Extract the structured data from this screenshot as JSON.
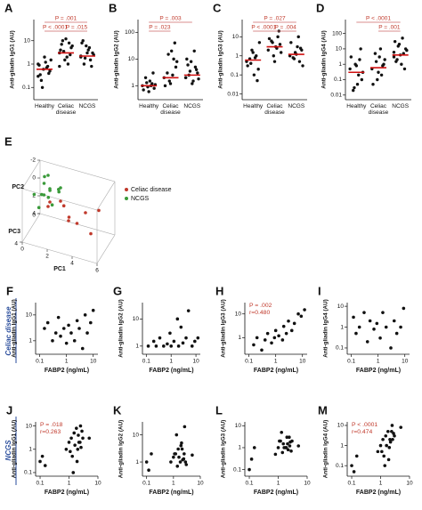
{
  "row_labels": [
    "Celiac disease",
    "NCGS"
  ],
  "chart_data": [
    {
      "type": "strip",
      "panel": "A",
      "y_label": "Anti-gliadin IgG1 (AU)",
      "log_y": true,
      "ylim": [
        0.03,
        80
      ],
      "yticks": [
        0.1,
        1,
        10
      ],
      "point_color": "#111",
      "median_color": "#d01010",
      "series": [
        {
          "name": "Healthy",
          "values": [
            0.3,
            0.5,
            0.8,
            1.2,
            0.6,
            0.2,
            0.9,
            1.5,
            0.4,
            0.7,
            2,
            0.1,
            0.35,
            1.0
          ],
          "median": 0.6
        },
        {
          "name": "Celiac disease",
          "values": [
            3,
            5,
            8,
            2,
            1.5,
            10,
            4,
            6,
            2.5,
            1,
            12,
            3.5,
            7,
            0.8
          ],
          "median": 3
        },
        {
          "name": "NCGS",
          "values": [
            2,
            3,
            1.5,
            4,
            6,
            1,
            8,
            2.5,
            0.8,
            5,
            3,
            1.8,
            10,
            2.2
          ],
          "median": 2.2
        }
      ],
      "comparisons": [
        {
          "label": "P = .001",
          "between": [
            "Healthy",
            "NCGS"
          ]
        },
        {
          "label": "P < .0001",
          "between": [
            "Healthy",
            "Celiac disease"
          ]
        },
        {
          "label": "P = .015",
          "between": [
            "Celiac disease",
            "NCGS"
          ]
        }
      ]
    },
    {
      "type": "strip",
      "panel": "B",
      "y_label": "Anti-gliadin IgG2 (AU)",
      "log_y": true,
      "ylim": [
        0.3,
        300
      ],
      "yticks": [
        1,
        10,
        100
      ],
      "point_color": "#111",
      "median_color": "#d01010",
      "series": [
        {
          "name": "Healthy",
          "values": [
            1,
            0.8,
            1.2,
            1.5,
            0.9,
            2,
            0.7,
            1.1,
            3,
            1,
            0.6,
            1.3
          ],
          "median": 1
        },
        {
          "name": "Celiac disease",
          "values": [
            2,
            5,
            10,
            20,
            1.5,
            3,
            1,
            8,
            40,
            2.5,
            1.2,
            15
          ],
          "median": 2
        },
        {
          "name": "NCGS",
          "values": [
            2,
            3,
            5,
            1.5,
            8,
            2.5,
            10,
            1.8,
            4,
            20,
            1.2,
            3.5,
            6,
            2
          ],
          "median": 2.5
        }
      ],
      "comparisons": [
        {
          "label": "P = .003",
          "between": [
            "Healthy",
            "NCGS"
          ]
        },
        {
          "label": "P = .023",
          "between": [
            "Healthy",
            "Celiac disease"
          ]
        }
      ]
    },
    {
      "type": "strip",
      "panel": "C",
      "y_label": "Anti-gliadin IgG3 (AU)",
      "log_y": true,
      "ylim": [
        0.005,
        80
      ],
      "yticks": [
        0.01,
        0.1,
        1,
        10
      ],
      "point_color": "#111",
      "median_color": "#d01010",
      "series": [
        {
          "name": "Healthy",
          "values": [
            0.5,
            0.2,
            1,
            0.1,
            2,
            0.7,
            0.3,
            5,
            0.05,
            0.8,
            1.5,
            0.4
          ],
          "median": 0.6
        },
        {
          "name": "Celiac disease",
          "values": [
            2,
            4,
            10,
            3,
            1,
            6,
            8,
            1.5,
            20,
            2.5,
            0.5,
            5
          ],
          "median": 3
        },
        {
          "name": "NCGS",
          "values": [
            1,
            2,
            0.5,
            3,
            1.5,
            0.8,
            5,
            0.3,
            2.5,
            10,
            1.2,
            0.7
          ],
          "median": 1.2
        }
      ],
      "comparisons": [
        {
          "label": "P = .027",
          "between": [
            "Healthy",
            "NCGS"
          ]
        },
        {
          "label": "P < .0001",
          "between": [
            "Healthy",
            "Celiac disease"
          ]
        },
        {
          "label": "P = .004",
          "between": [
            "Celiac disease",
            "NCGS"
          ]
        }
      ]
    },
    {
      "type": "strip",
      "panel": "D",
      "y_label": "Anti-gliadin IgG4 (AU)",
      "log_y": true,
      "ylim": [
        0.005,
        800
      ],
      "yticks": [
        0.01,
        0.1,
        1,
        10,
        100
      ],
      "point_color": "#111",
      "median_color": "#d01010",
      "series": [
        {
          "name": "Healthy",
          "values": [
            0.5,
            0.1,
            2,
            0.05,
            1,
            0.02,
            3,
            0.3,
            10,
            0.2,
            0.8,
            0.03
          ],
          "median": 0.3
        },
        {
          "name": "Celiac disease",
          "values": [
            0.5,
            1,
            0.2,
            3,
            0.1,
            5,
            0.05,
            2,
            0.8,
            10,
            0.3,
            1.5
          ],
          "median": 0.6
        },
        {
          "name": "NCGS",
          "values": [
            3,
            10,
            5,
            1,
            20,
            2,
            30,
            8,
            0.5,
            50,
            4,
            15,
            1.5,
            6
          ],
          "median": 4
        }
      ],
      "comparisons": [
        {
          "label": "P < .0001",
          "between": [
            "Healthy",
            "NCGS"
          ]
        },
        {
          "label": "P = .001",
          "between": [
            "Celiac disease",
            "NCGS"
          ]
        }
      ]
    },
    {
      "type": "scatter3d",
      "panel": "E",
      "x_label": "PC1",
      "y_label": "PC2",
      "z_label": "PC3",
      "xlim": [
        0,
        6
      ],
      "ylim": [
        -2,
        4
      ],
      "zlim": [
        0,
        4
      ],
      "xticks": [
        0,
        2,
        4,
        6
      ],
      "yticks": [
        -2,
        0,
        2,
        4
      ],
      "zticks": [
        0,
        4
      ],
      "series": [
        {
          "name": "Celiac disease",
          "color": "#c0392b",
          "x": [
            2,
            3,
            4,
            2.5,
            1.5,
            3.5,
            5,
            2.8,
            1,
            4.5
          ],
          "y": [
            1,
            2,
            1.5,
            3,
            0.5,
            2.5,
            1,
            0,
            2,
            3.5
          ],
          "z": [
            1,
            2,
            1,
            0.5,
            2,
            1.5,
            0.8,
            2.5,
            1,
            1.2
          ]
        },
        {
          "name": "NCGS",
          "color": "#3a9a3a",
          "x": [
            1,
            1.5,
            0.5,
            1.2,
            2,
            0.8,
            1,
            1.8,
            0.6,
            1.4,
            2.2,
            0.9,
            1.1,
            0.7
          ],
          "y": [
            -1.5,
            -1,
            0,
            0.5,
            -0.5,
            1,
            -2,
            0.2,
            -0.8,
            1.5,
            -1.2,
            0.8,
            -0.3,
            0.3
          ],
          "z": [
            1,
            2,
            0.5,
            1.5,
            1,
            2.5,
            1.8,
            0.8,
            3,
            1.2,
            2,
            0.3,
            2.2,
            1.6
          ]
        }
      ]
    },
    {
      "type": "scatter",
      "panel": "F",
      "x_label": "FABP2 (ng/mL)",
      "y_label": "Anti-gliadin IgG1 (AU)",
      "log_x": true,
      "log_y": true,
      "xlim": [
        0.07,
        15
      ],
      "ylim": [
        0.3,
        30
      ],
      "xticks": [
        0.1,
        1,
        10
      ],
      "yticks": [
        1,
        10
      ],
      "color": "#111",
      "x": [
        0.15,
        0.2,
        0.3,
        0.4,
        0.5,
        0.6,
        0.8,
        1,
        1.2,
        1.5,
        2,
        2.5,
        3,
        4,
        5,
        6,
        8,
        10
      ],
      "y": [
        3,
        5,
        1,
        2,
        8,
        1.5,
        3,
        0.8,
        4,
        2,
        1,
        6,
        3,
        0.5,
        10,
        2,
        5,
        15
      ]
    },
    {
      "type": "scatter",
      "panel": "G",
      "x_label": "FABP2 (ng/mL)",
      "y_label": "Anti-gliadin IgG2 (AU)",
      "log_x": true,
      "log_y": true,
      "xlim": [
        0.07,
        15
      ],
      "ylim": [
        0.5,
        40
      ],
      "xticks": [
        0.1,
        1,
        10
      ],
      "yticks": [
        1,
        10
      ],
      "color": "#111",
      "x": [
        0.12,
        0.2,
        0.25,
        0.35,
        0.5,
        0.7,
        0.9,
        1,
        1.3,
        1.8,
        2,
        2.5,
        3,
        4,
        5,
        7,
        9,
        12
      ],
      "y": [
        1,
        1.5,
        1,
        2,
        1,
        1.2,
        3,
        1,
        1.5,
        10,
        1,
        5,
        1.3,
        2,
        20,
        1,
        1.5,
        2
      ]
    },
    {
      "type": "scatter",
      "panel": "H",
      "x_label": "FABP2 (ng/mL)",
      "y_label": "Anti-gliadin IgG3 (AU)",
      "log_x": true,
      "log_y": true,
      "xlim": [
        0.07,
        15
      ],
      "ylim": [
        0.2,
        30
      ],
      "xticks": [
        0.1,
        1,
        10
      ],
      "yticks": [
        1,
        10
      ],
      "color": "#111",
      "annotations": [
        "P = .002",
        "r=0.480"
      ],
      "x": [
        0.15,
        0.2,
        0.3,
        0.4,
        0.5,
        0.7,
        0.9,
        1,
        1.3,
        1.8,
        2,
        2.5,
        3,
        4,
        5,
        7,
        9,
        12
      ],
      "y": [
        0.5,
        1,
        0.3,
        0.8,
        1.5,
        0.6,
        1,
        2,
        1.2,
        0.8,
        3,
        1.5,
        5,
        2,
        4,
        10,
        8,
        15
      ]
    },
    {
      "type": "scatter",
      "panel": "I",
      "x_label": "FABP2 (ng/mL)",
      "y_label": "Anti-gliadin IgG4 (AU)",
      "log_x": true,
      "log_y": true,
      "xlim": [
        0.07,
        15
      ],
      "ylim": [
        0.05,
        15
      ],
      "xticks": [
        0.1,
        1,
        10
      ],
      "yticks": [
        0.1,
        1,
        10
      ],
      "color": "#111",
      "x": [
        0.12,
        0.15,
        0.2,
        0.3,
        0.4,
        0.5,
        0.7,
        0.9,
        1.2,
        1.5,
        2,
        3,
        4,
        5,
        7,
        9
      ],
      "y": [
        3,
        0.5,
        1,
        5,
        0.2,
        2,
        0.8,
        1.5,
        0.3,
        5,
        1,
        0.1,
        2,
        0.5,
        1,
        8
      ]
    },
    {
      "type": "scatter",
      "panel": "J",
      "x_label": "FABP2 (ng/mL)",
      "y_label": "Anti-gliadin IgG1 (AU)",
      "log_x": true,
      "log_y": true,
      "xlim": [
        0.07,
        10
      ],
      "ylim": [
        0.07,
        15
      ],
      "xticks": [
        0.1,
        1,
        10
      ],
      "yticks": [
        0.1,
        1,
        10
      ],
      "color": "#111",
      "annotations": [
        "P = .018",
        "r=0.263"
      ],
      "x": [
        0.1,
        0.12,
        0.15,
        0.8,
        1,
        1.2,
        1.5,
        1.8,
        2,
        2.2,
        2.5,
        3,
        1.3,
        1.6,
        2.1,
        2.8,
        1.1,
        1.9,
        2.4,
        5,
        1.4,
        2.6
      ],
      "y": [
        0.3,
        0.5,
        0.2,
        1,
        2,
        3,
        5,
        8,
        1,
        2,
        10,
        3,
        0.5,
        1.5,
        4,
        6,
        0.8,
        0.3,
        2,
        3,
        0.1,
        1.2
      ]
    },
    {
      "type": "scatter",
      "panel": "K",
      "x_label": "FABP2 (ng/mL)",
      "y_label": "Anti-gliadin IgG2 (AU)",
      "log_x": true,
      "log_y": true,
      "xlim": [
        0.07,
        10
      ],
      "ylim": [
        0.3,
        30
      ],
      "xticks": [
        0.1,
        1,
        10
      ],
      "yticks": [
        1,
        10
      ],
      "color": "#111",
      "x": [
        0.1,
        0.12,
        0.15,
        0.8,
        1,
        1.2,
        1.5,
        1.8,
        2,
        2.2,
        2.5,
        3,
        1.3,
        1.6,
        2.1,
        2.8,
        1.1,
        1.9,
        2.4,
        5,
        1.4,
        2.6
      ],
      "y": [
        1,
        0.5,
        2,
        1,
        1.5,
        2,
        3,
        1,
        5,
        1.2,
        2,
        0.8,
        10,
        1.5,
        3,
        1,
        2,
        4,
        1.3,
        1.8,
        0.7,
        20
      ]
    },
    {
      "type": "scatter",
      "panel": "L",
      "x_label": "FABP2 (ng/mL)",
      "y_label": "Anti-gliadin IgG3 (AU)",
      "log_x": true,
      "log_y": true,
      "xlim": [
        0.07,
        10
      ],
      "ylim": [
        0.05,
        15
      ],
      "xticks": [
        0.1,
        1,
        10
      ],
      "yticks": [
        0.1,
        1,
        10
      ],
      "color": "#111",
      "x": [
        0.1,
        0.12,
        0.15,
        0.8,
        1,
        1.2,
        1.5,
        1.8,
        2,
        2.2,
        2.5,
        3,
        1.3,
        1.6,
        2.1,
        2.8,
        1.1,
        1.9,
        2.4,
        5,
        1.4,
        2.6
      ],
      "y": [
        0.1,
        0.3,
        1,
        0.5,
        1,
        2,
        1.5,
        1,
        3,
        0.8,
        1.2,
        2,
        5,
        1,
        1.5,
        0.7,
        2,
        1,
        3,
        1.2,
        0.6,
        1.8
      ]
    },
    {
      "type": "scatter",
      "panel": "M",
      "x_label": "FABP2 (ng/mL)",
      "y_label": "Anti-gliadin IgG4 (AU)",
      "log_x": true,
      "log_y": true,
      "xlim": [
        0.07,
        10
      ],
      "ylim": [
        0.03,
        15
      ],
      "xticks": [
        0.1,
        1,
        10
      ],
      "yticks": [
        0.1,
        1,
        10
      ],
      "color": "#111",
      "annotations": [
        "P < .0001",
        "r=0.474"
      ],
      "x": [
        0.1,
        0.12,
        0.15,
        0.8,
        1,
        1.2,
        1.5,
        1.8,
        2,
        2.2,
        2.5,
        3,
        1.3,
        1.6,
        2.1,
        2.8,
        1.1,
        1.9,
        2.4,
        5,
        1.4,
        2.6
      ],
      "y": [
        0.1,
        0.05,
        0.3,
        0.5,
        1,
        2,
        3,
        5,
        0.8,
        1.5,
        10,
        3,
        0.3,
        1,
        2,
        4,
        0.5,
        0.2,
        5,
        8,
        0.1,
        2
      ]
    }
  ]
}
